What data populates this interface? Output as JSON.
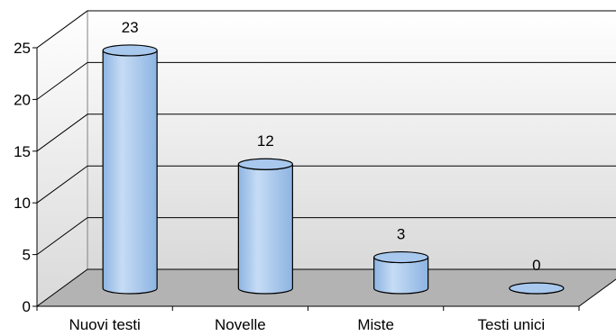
{
  "chart_data": {
    "type": "bar",
    "style": "3d-cylinder",
    "title": "",
    "xlabel": "",
    "ylabel": "",
    "categories": [
      "Nuovi testi",
      "Novelle",
      "Miste",
      "Testi unici"
    ],
    "values": [
      23,
      12,
      3,
      0
    ],
    "data_labels": [
      "23",
      "12",
      "3",
      "0"
    ],
    "ylim": [
      0,
      25
    ],
    "yticks": [
      0,
      5,
      10,
      15,
      20,
      25
    ],
    "ytick_labels": [
      "0",
      "5",
      "10",
      "15",
      "20",
      "25"
    ],
    "grid": true,
    "legend": "none",
    "colors": {
      "bar_fill": "#8db4e2",
      "bar_highlight": "#c6dcf5",
      "bar_top": "#a8c8ee",
      "wall_top": "#ffffff",
      "wall_bottom": "#d9d9d9",
      "floor": "#b3b3b3",
      "grid": "#000000"
    }
  }
}
